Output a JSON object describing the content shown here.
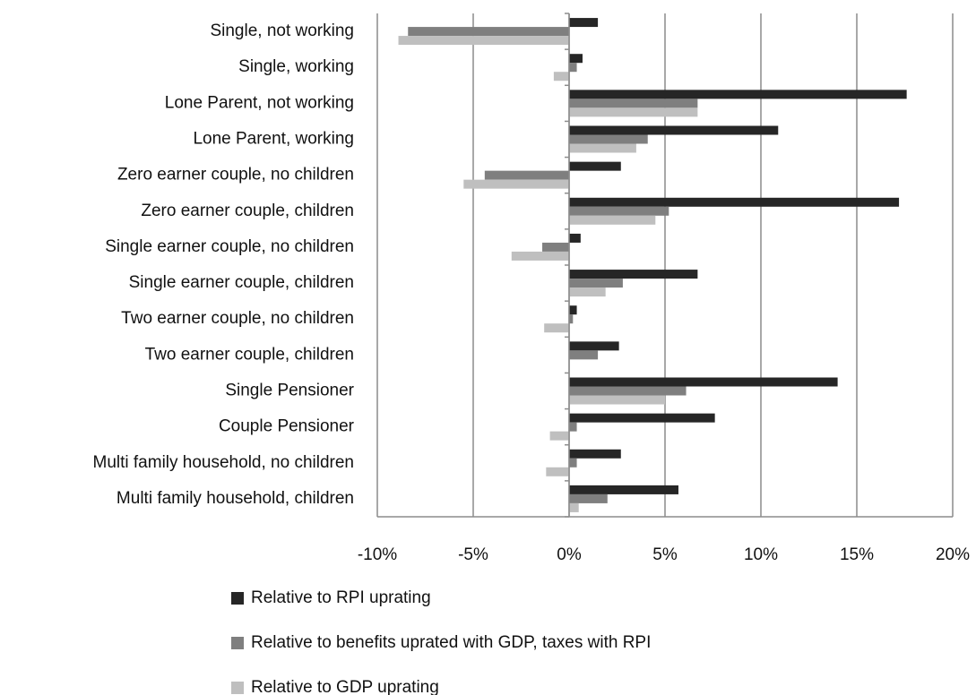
{
  "chart_data": {
    "type": "hbar",
    "categories": [
      "Single, not working",
      "Single, working",
      "Lone Parent, not working",
      "Lone Parent, working",
      "Zero earner couple, no children",
      "Zero earner couple, children",
      "Single earner couple, no children",
      "Single earner couple, children",
      "Two earner couple, no children",
      "Two earner couple, children",
      "Single Pensioner",
      "Couple Pensioner",
      "Multi family household, no children",
      "Multi family household, children"
    ],
    "series": [
      {
        "name": "Relative to RPI uprating",
        "color": "#262626",
        "values": [
          1.5,
          0.7,
          17.6,
          10.9,
          2.7,
          17.2,
          0.6,
          6.7,
          0.4,
          2.6,
          14.0,
          7.6,
          2.7,
          5.7
        ]
      },
      {
        "name": "Relative to benefits uprated with GDP, taxes with RPI",
        "color": "#7f7f7f",
        "values": [
          -8.4,
          0.4,
          6.7,
          4.1,
          -4.4,
          5.2,
          -1.4,
          2.8,
          0.2,
          1.5,
          6.1,
          0.4,
          0.4,
          2.0
        ]
      },
      {
        "name": "Relative to GDP uprating",
        "color": "#bfbfbf",
        "values": [
          -8.9,
          -0.8,
          6.7,
          3.5,
          -5.5,
          4.5,
          -3.0,
          1.9,
          -1.3,
          0,
          5.0,
          -1.0,
          -1.2,
          0.5
        ]
      }
    ],
    "xlim": [
      -10,
      20
    ],
    "xticks": [
      {
        "value": -10,
        "label": "-10%"
      },
      {
        "value": -5,
        "label": "-5%"
      },
      {
        "value": 0,
        "label": "0%"
      },
      {
        "value": 5,
        "label": "5%"
      },
      {
        "value": 10,
        "label": "10%"
      },
      {
        "value": 15,
        "label": "15%"
      },
      {
        "value": 20,
        "label": "20%"
      }
    ],
    "grid": true,
    "legend": "bottom"
  }
}
